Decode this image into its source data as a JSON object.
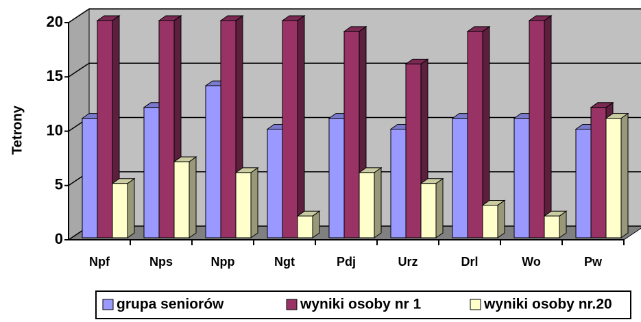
{
  "chart_data": {
    "type": "bar3d",
    "y_label": "Tetrony",
    "categories": [
      "Npf",
      "Nps",
      "Npp",
      "Ngt",
      "Pdj",
      "Urz",
      "Drl",
      "Wo",
      "Pw"
    ],
    "series": [
      {
        "name": "grupa seniorów",
        "color": "#9999ff",
        "values": [
          11,
          12,
          14,
          10,
          11,
          10,
          11,
          11,
          10
        ]
      },
      {
        "name": "wyniki osoby nr 1",
        "color": "#993366",
        "values": [
          20,
          20,
          20,
          20,
          19,
          16,
          19,
          20,
          12
        ]
      },
      {
        "name": "wyniki osoby nr.20",
        "color": "#ffffcc",
        "values": [
          5,
          7,
          6,
          2,
          6,
          5,
          3,
          2,
          11
        ]
      }
    ],
    "ylim": [
      0,
      20
    ],
    "yticks": [
      0,
      5,
      10,
      15,
      20
    ],
    "grid": true,
    "legend": "bottom"
  }
}
